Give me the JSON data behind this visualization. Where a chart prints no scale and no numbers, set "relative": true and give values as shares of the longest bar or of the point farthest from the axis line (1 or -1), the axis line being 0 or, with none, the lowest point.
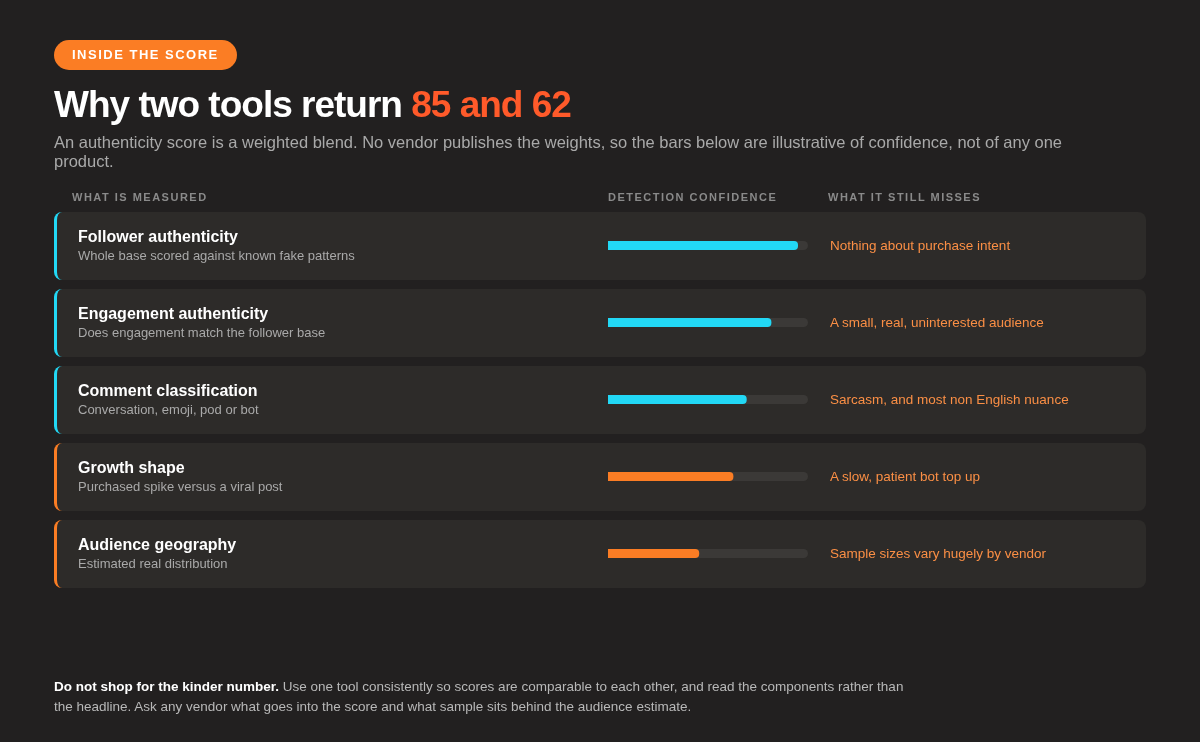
{
  "chart_data": {
    "type": "bar",
    "orientation": "horizontal",
    "relative": true,
    "title": "Why two tools return 85 and 62",
    "subtitle": "An authenticity score is a weighted blend. No vendor publishes the weights, so the bars below are illustrative of confidence, not of any one product.",
    "categories": [
      "Follower authenticity",
      "Engagement authenticity",
      "Comment classification",
      "Growth shape",
      "Audience geography"
    ],
    "values": [
      1,
      0.86,
      0.73,
      0.66,
      0.48
    ],
    "colors": [
      "#22d8f5",
      "#22d8f5",
      "#22d8f5",
      "#fb7d24",
      "#fb7d24"
    ],
    "annotations": [
      "INSIDE THE SCORE",
      "WHAT IS MEASURED",
      "DETECTION CONFIDENCE",
      "WHAT IT STILL MISSES",
      "Whole base scored against known fake patterns",
      "Does engagement match the follower base",
      "Conversation, emoji, pod or bot",
      "Purchased spike versus a viral post",
      "Estimated real distribution",
      "Nothing about purchase intent",
      "A small, real, uninterested audience",
      "Sarcasm, and most non English nuance",
      "A slow, patient bot top up",
      "Sample sizes vary hugely by vendor",
      "Do not shop for the kinder number. Use one tool consistently so scores are comparable to each other, and read the components rather than the headline. Ask any vendor what goes into the score and what sample sits behind the audience estimate."
    ]
  }
}
